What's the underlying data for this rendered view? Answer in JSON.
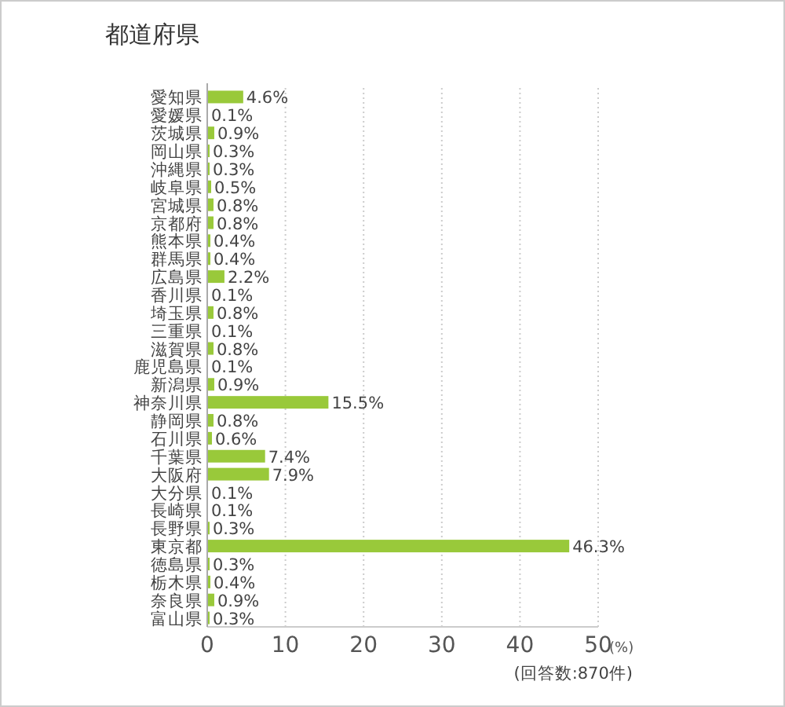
{
  "chart_data": {
    "type": "bar",
    "orientation": "horizontal",
    "title": "都道府県",
    "xlabel": "(%)",
    "categories": [
      "愛知県",
      "愛媛県",
      "茨城県",
      "岡山県",
      "沖縄県",
      "岐阜県",
      "宮城県",
      "京都府",
      "熊本県",
      "群馬県",
      "広島県",
      "香川県",
      "埼玉県",
      "三重県",
      "滋賀県",
      "鹿児島県",
      "新潟県",
      "神奈川県",
      "静岡県",
      "石川県",
      "千葉県",
      "大阪府",
      "大分県",
      "長崎県",
      "長野県",
      "東京都",
      "徳島県",
      "栃木県",
      "奈良県",
      "富山県"
    ],
    "values": [
      4.6,
      0.1,
      0.9,
      0.3,
      0.3,
      0.5,
      0.8,
      0.8,
      0.4,
      0.4,
      2.2,
      0.1,
      0.8,
      0.1,
      0.8,
      0.1,
      0.9,
      15.5,
      0.8,
      0.6,
      7.4,
      7.9,
      0.1,
      0.1,
      0.3,
      46.3,
      0.3,
      0.4,
      0.9,
      0.3
    ],
    "value_labels": [
      "4.6%",
      "0.1%",
      "0.9%",
      "0.3%",
      "0.3%",
      "0.5%",
      "0.8%",
      "0.8%",
      "0.4%",
      "0.4%",
      "2.2%",
      "0.1%",
      "0.8%",
      "0.1%",
      "0.8%",
      "0.1%",
      "0.9%",
      "15.5%",
      "0.8%",
      "0.6%",
      "7.4%",
      "7.9%",
      "0.1%",
      "0.1%",
      "0.3%",
      "46.3%",
      "0.3%",
      "0.4%",
      "0.9%",
      "0.3%"
    ],
    "color": "#99c93a",
    "xlim": [
      0,
      50
    ],
    "xticks": [
      0,
      10,
      20,
      30,
      40,
      50
    ],
    "grid": "x",
    "annotations": [
      "(回答数:870件)"
    ]
  }
}
